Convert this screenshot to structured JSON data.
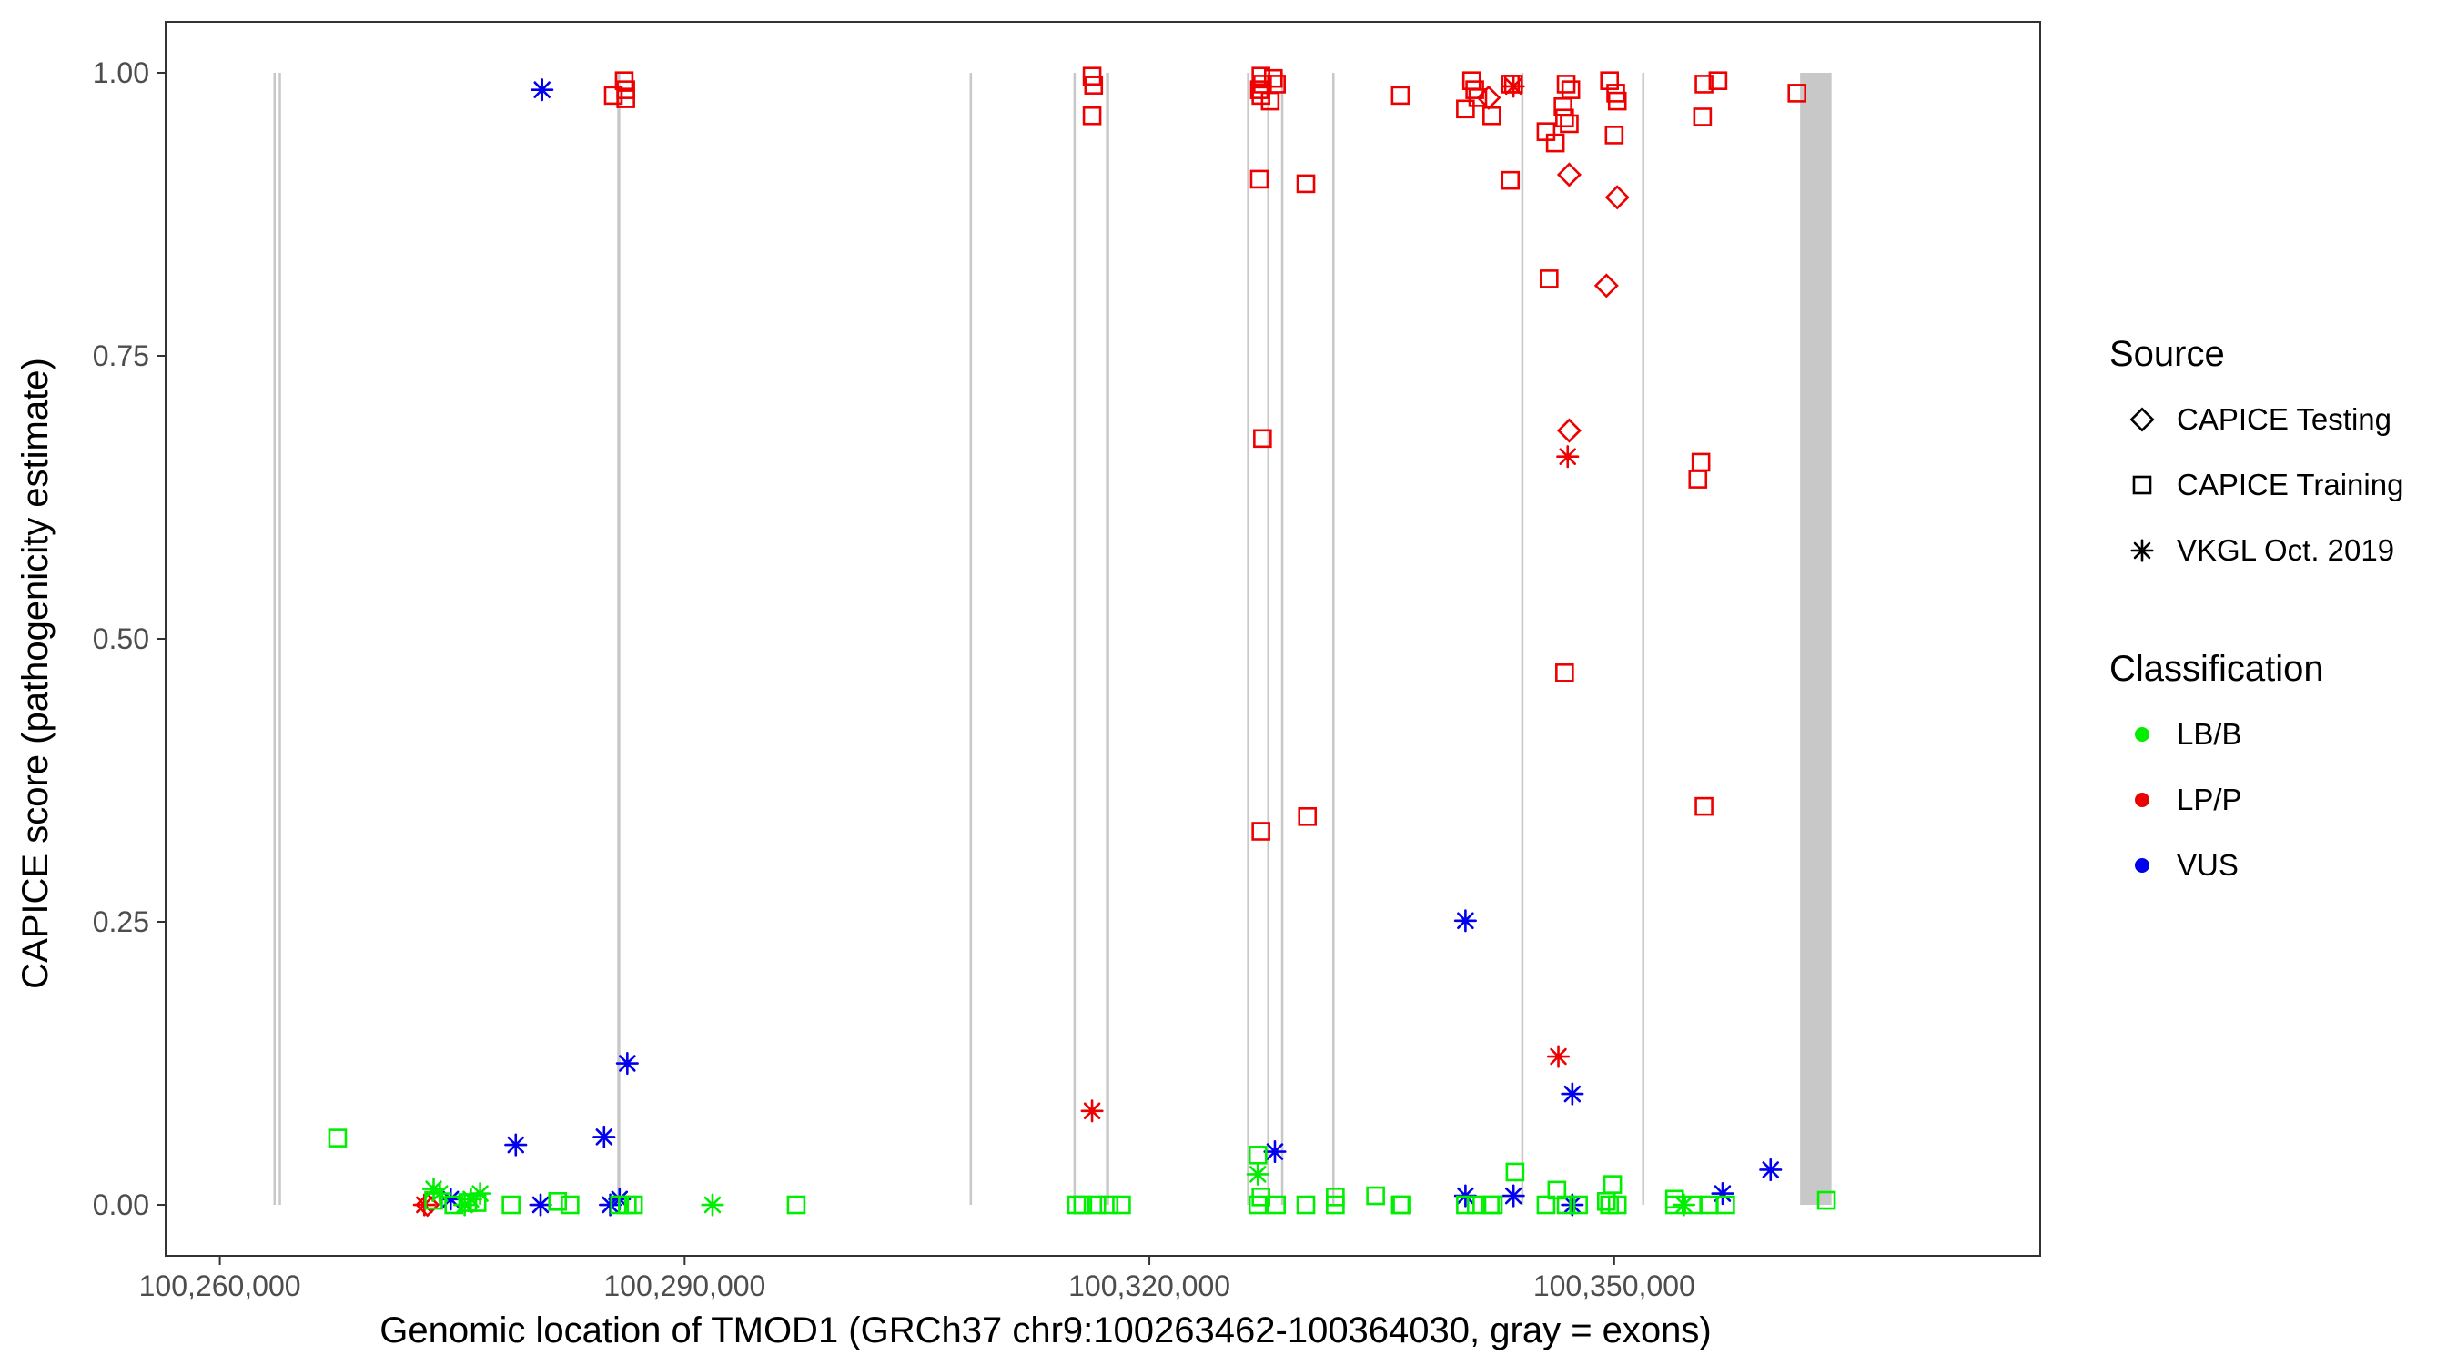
{
  "chart_data": {
    "type": "scatter",
    "title": "",
    "xlabel": "Genomic location of TMOD1 (GRCh37 chr9:100263462-100364030, gray = exons)",
    "ylabel": "CAPICE score (pathogenicity estimate)",
    "xlim": [
      100256500,
      100377500
    ],
    "ylim": [
      -0.045,
      1.045
    ],
    "x_ticks": [
      100260000,
      100290000,
      100320000,
      100350000
    ],
    "x_tick_labels": [
      "100,260,000",
      "100,290,000",
      "100,320,000",
      "100,350,000"
    ],
    "y_ticks": [
      0,
      0.25,
      0.5,
      0.75,
      1
    ],
    "y_tick_labels": [
      "0.00",
      "0.25",
      "0.50",
      "0.75",
      "1.00"
    ],
    "grid": false,
    "legend_position": "right",
    "legends": [
      {
        "title": "Source",
        "entries": [
          {
            "label": "CAPICE Testing",
            "shape": "diamond"
          },
          {
            "label": "CAPICE Training",
            "shape": "square"
          },
          {
            "label": "VKGL Oct. 2019",
            "shape": "asterisk"
          }
        ]
      },
      {
        "title": "Classification",
        "entries": [
          {
            "label": "LB/B",
            "color": "#00ee00"
          },
          {
            "label": "LP/P",
            "color": "#ee0000"
          },
          {
            "label": "VUS",
            "color": "#0000ee"
          }
        ]
      }
    ],
    "colors": {
      "LB/B": "#00ee00",
      "LP/P": "#ee0000",
      "VUS": "#0000ee",
      "exon": "#c8c8c8"
    },
    "exons": [
      [
        100263462,
        100263462
      ],
      [
        100263800,
        100263800
      ],
      [
        100285650,
        100285850
      ],
      [
        100308400,
        100308400
      ],
      [
        100315100,
        100315100
      ],
      [
        100317200,
        100317400
      ],
      [
        100326300,
        100326300
      ],
      [
        100327600,
        100327600
      ],
      [
        100328500,
        100328500
      ],
      [
        100331800,
        100331950
      ],
      [
        100344000,
        100344000
      ],
      [
        100351800,
        100351800
      ],
      [
        100362000,
        100364030
      ]
    ],
    "series": [
      {
        "name": "CAPICE Training",
        "classification": "LP/P",
        "shape": "square",
        "points": [
          [
            100285400,
            0.98
          ],
          [
            100286100,
            0.993
          ],
          [
            100286200,
            0.985
          ],
          [
            100286200,
            0.977
          ],
          [
            100316300,
            0.997
          ],
          [
            100316400,
            0.989
          ],
          [
            100316300,
            0.962
          ],
          [
            100327200,
            0.997
          ],
          [
            100327300,
            0.99
          ],
          [
            100327100,
            0.985
          ],
          [
            100327200,
            0.98
          ],
          [
            100327800,
            0.975
          ],
          [
            100328000,
            0.995
          ],
          [
            100328200,
            0.99
          ],
          [
            100327100,
            0.906
          ],
          [
            100330100,
            0.902
          ],
          [
            100336200,
            0.98
          ],
          [
            100340400,
            0.968
          ],
          [
            100340800,
            0.993
          ],
          [
            100341000,
            0.985
          ],
          [
            100341200,
            0.978
          ],
          [
            100342100,
            0.962
          ],
          [
            100343300,
            0.99
          ],
          [
            100343500,
            0.99
          ],
          [
            100343300,
            0.905
          ],
          [
            100345600,
            0.948
          ],
          [
            100346200,
            0.938
          ],
          [
            100346800,
            0.96
          ],
          [
            100346700,
            0.97
          ],
          [
            100346900,
            0.99
          ],
          [
            100347200,
            0.985
          ],
          [
            100347100,
            0.955
          ],
          [
            100349700,
            0.993
          ],
          [
            100350100,
            0.982
          ],
          [
            100350200,
            0.975
          ],
          [
            100350000,
            0.945
          ],
          [
            100345800,
            0.818
          ],
          [
            100355800,
            0.99
          ],
          [
            100356700,
            0.993
          ],
          [
            100355700,
            0.961
          ],
          [
            100327300,
            0.677
          ],
          [
            100355600,
            0.656
          ],
          [
            100355400,
            0.641
          ],
          [
            100346800,
            0.47
          ],
          [
            100355800,
            0.352
          ],
          [
            100327200,
            0.33
          ],
          [
            100330200,
            0.343
          ],
          [
            100361800,
            0.982
          ]
        ]
      },
      {
        "name": "CAPICE Testing",
        "classification": "LP/P",
        "shape": "diamond",
        "points": [
          [
            100341900,
            0.978
          ],
          [
            100347100,
            0.91
          ],
          [
            100350200,
            0.89
          ],
          [
            100349500,
            0.812
          ],
          [
            100347100,
            0.684
          ],
          [
            100273400,
            0.0
          ]
        ]
      },
      {
        "name": "VKGL Oct. 2019",
        "classification": "LP/P",
        "shape": "asterisk",
        "points": [
          [
            100343500,
            0.988
          ],
          [
            100347000,
            0.661
          ],
          [
            100346400,
            0.131
          ],
          [
            100316300,
            0.083
          ],
          [
            100273200,
            0.0
          ]
        ]
      },
      {
        "name": "VKGL Oct. 2019",
        "classification": "VUS",
        "shape": "asterisk",
        "points": [
          [
            100280800,
            0.985
          ],
          [
            100340400,
            0.251
          ],
          [
            100286300,
            0.125
          ],
          [
            100347300,
            0.098
          ],
          [
            100279100,
            0.053
          ],
          [
            100284800,
            0.06
          ],
          [
            100328100,
            0.047
          ],
          [
            100360100,
            0.031
          ],
          [
            100274900,
            0.005
          ],
          [
            100285800,
            0.005
          ],
          [
            100340400,
            0.008
          ],
          [
            100343500,
            0.008
          ],
          [
            100357000,
            0.01
          ],
          [
            100280700,
            0.0
          ],
          [
            100285200,
            0.0
          ],
          [
            100347300,
            0.0
          ]
        ]
      },
      {
        "name": "VKGL Oct. 2019",
        "classification": "LB/B",
        "shape": "asterisk",
        "points": [
          [
            100273800,
            0.014
          ],
          [
            100274200,
            0.01
          ],
          [
            100276800,
            0.01
          ],
          [
            100276200,
            0.005
          ],
          [
            100275800,
            0.0
          ],
          [
            100291800,
            0.0
          ],
          [
            100327000,
            0.027
          ],
          [
            100354500,
            0.0
          ]
        ]
      },
      {
        "name": "CAPICE Training",
        "classification": "LB/B",
        "shape": "square",
        "points": [
          [
            100267600,
            0.059
          ],
          [
            100273800,
            0.004
          ],
          [
            100275100,
            0.0
          ],
          [
            100276000,
            0.002
          ],
          [
            100276600,
            0.002
          ],
          [
            100278800,
            0.0
          ],
          [
            100281800,
            0.003
          ],
          [
            100282600,
            0.0
          ],
          [
            100285800,
            0.0
          ],
          [
            100286300,
            0.0
          ],
          [
            100286700,
            0.0
          ],
          [
            100297200,
            0.0
          ],
          [
            100315300,
            0.0
          ],
          [
            100315700,
            0.0
          ],
          [
            100316600,
            0.0
          ],
          [
            100317400,
            0.0
          ],
          [
            100318200,
            0.0
          ],
          [
            100327000,
            0.044
          ],
          [
            100327200,
            0.007
          ],
          [
            100327000,
            0.0
          ],
          [
            100328200,
            0.0
          ],
          [
            100330100,
            0.0
          ],
          [
            100332000,
            0.007
          ],
          [
            100332000,
            0.0
          ],
          [
            100334600,
            0.008
          ],
          [
            100336200,
            0.0
          ],
          [
            100336300,
            0.0
          ],
          [
            100340400,
            0.0
          ],
          [
            100341100,
            0.0
          ],
          [
            100342000,
            0.0
          ],
          [
            100342200,
            0.0
          ],
          [
            100343600,
            0.029
          ],
          [
            100345600,
            0.0
          ],
          [
            100346300,
            0.013
          ],
          [
            100346900,
            0.0
          ],
          [
            100347700,
            0.0
          ],
          [
            100349500,
            0.003
          ],
          [
            100349700,
            0.0
          ],
          [
            100349900,
            0.018
          ],
          [
            100350200,
            0.0
          ],
          [
            100353900,
            0.005
          ],
          [
            100353900,
            0.0
          ],
          [
            100355100,
            0.0
          ],
          [
            100356100,
            0.0
          ],
          [
            100357200,
            0.0
          ],
          [
            100363700,
            0.004
          ]
        ]
      }
    ]
  }
}
